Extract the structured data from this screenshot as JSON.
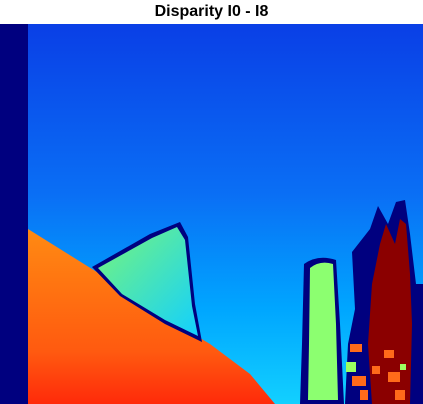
{
  "figure": {
    "title": "Disparity I0 - I8",
    "colormap": "jet",
    "colors": {
      "invalid": "#00007f",
      "far_top": "#0a3fe6",
      "far_mid": "#0a6ff5",
      "mid": "#00a6ff",
      "near_mid": "#12d0ff",
      "green_plane": "#78f57a",
      "green_post": "#8cff70",
      "orange_near": "#ff8a12",
      "orange_far": "#ff5a10",
      "red_nearest": "#ff2a0a",
      "dark_red_tree": "#8b0000",
      "speckle_orange": "#ff6a1a",
      "speckle_green": "#9dff60"
    }
  }
}
